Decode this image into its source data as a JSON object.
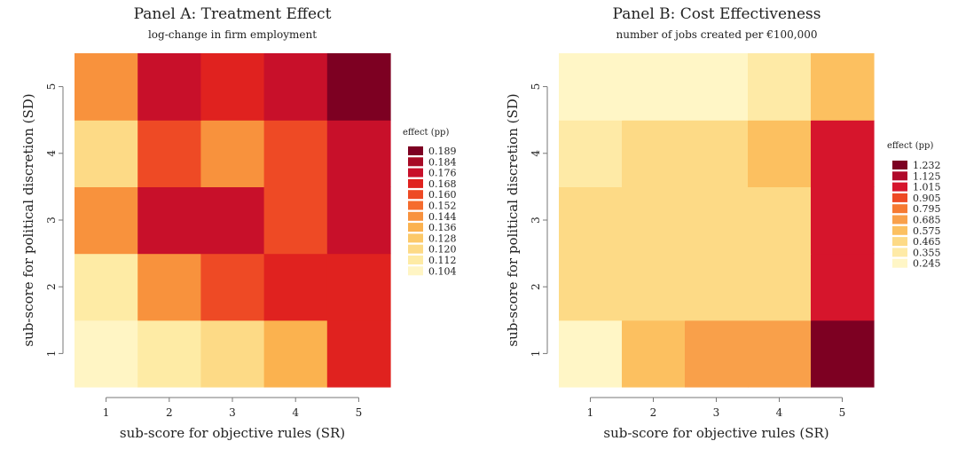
{
  "chart_data": [
    {
      "type": "heatmap",
      "title": "Panel A: Treatment Effect",
      "subtitle": "log-change in firm employment",
      "xlabel": "sub-score for objective rules (SR)",
      "ylabel": "sub-score for political discretion (SD)",
      "x_categories": [
        "1",
        "2",
        "3",
        "4",
        "5"
      ],
      "y_categories": [
        "1",
        "2",
        "3",
        "4",
        "5"
      ],
      "legend_title": "effect (pp)",
      "legend_labels": [
        "0.189",
        "0.184",
        "0.176",
        "0.168",
        "0.160",
        "0.152",
        "0.144",
        "0.136",
        "0.128",
        "0.120",
        "0.112",
        "0.104"
      ],
      "legend_colors": [
        "#7d0022",
        "#a70a25",
        "#c8102a",
        "#e0221f",
        "#ee4a25",
        "#f56c2e",
        "#f8923d",
        "#fbb24f",
        "#fcc969",
        "#fdda86",
        "#feeba5",
        "#fff5c4"
      ],
      "values": [
        [
          0.106,
          0.112,
          0.126,
          0.142,
          0.168
        ],
        [
          0.118,
          0.15,
          0.162,
          0.168,
          0.168
        ],
        [
          0.15,
          0.178,
          0.178,
          0.166,
          0.176
        ],
        [
          0.12,
          0.162,
          0.15,
          0.162,
          0.176
        ],
        [
          0.15,
          0.18,
          0.168,
          0.178,
          0.192
        ]
      ]
    },
    {
      "type": "heatmap",
      "title": "Panel B: Cost Effectiveness",
      "subtitle": "number of jobs created per €100,000",
      "xlabel": "sub-score for objective rules (SR)",
      "ylabel": "sub-score for political discretion (SD)",
      "x_categories": [
        "1",
        "2",
        "3",
        "4",
        "5"
      ],
      "y_categories": [
        "1",
        "2",
        "3",
        "4",
        "5"
      ],
      "legend_title": "effect (pp)",
      "legend_labels": [
        "1.232",
        "1.125",
        "1.015",
        "0.905",
        "0.795",
        "0.685",
        "0.575",
        "0.465",
        "0.355",
        "0.245"
      ],
      "legend_colors": [
        "#7d0022",
        "#b0092a",
        "#d6152c",
        "#ee4a25",
        "#f67a32",
        "#f9a04a",
        "#fcc060",
        "#fdda86",
        "#feeaa6",
        "#fff6c6"
      ],
      "values": [
        [
          0.3,
          0.66,
          0.76,
          0.76,
          1.26
        ],
        [
          0.48,
          0.48,
          0.48,
          0.56,
          1.1
        ],
        [
          0.48,
          0.48,
          0.56,
          0.56,
          1.05
        ],
        [
          0.4,
          0.48,
          0.48,
          0.66,
          1.1
        ],
        [
          0.26,
          0.35,
          0.35,
          0.46,
          0.66
        ]
      ]
    }
  ]
}
